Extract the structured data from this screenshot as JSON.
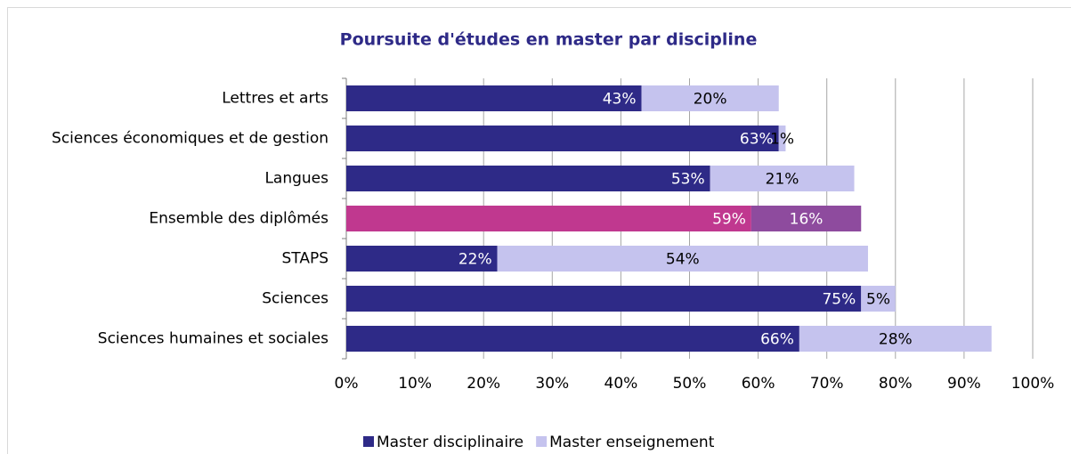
{
  "chart_data": {
    "type": "stacked_bar_horizontal",
    "title": "Poursuite d'études en master par discipline",
    "categories": [
      "Lettres et arts",
      "Sciences économiques et de gestion",
      "Langues",
      "Ensemble des diplômés",
      "STAPS",
      "Sciences",
      "Sciences humaines et sociales"
    ],
    "series": [
      {
        "name": "Master disciplinaire",
        "color": "#2e2a87",
        "colors": [
          "#2e2a87",
          "#2e2a87",
          "#2e2a87",
          "#c0388f",
          "#2e2a87",
          "#2e2a87",
          "#2e2a87"
        ],
        "values": [
          43,
          63,
          53,
          59,
          22,
          75,
          66
        ],
        "value_labels": [
          "43%",
          "63%",
          "53%",
          "59%",
          "22%",
          "75%",
          "66%"
        ]
      },
      {
        "name": "Master enseignement",
        "color": "#c5c3ee",
        "colors": [
          "#c5c3ee",
          "#c5c3ee",
          "#c5c3ee",
          "#8e4b9e",
          "#c5c3ee",
          "#c5c3ee",
          "#c5c3ee"
        ],
        "values": [
          20,
          1,
          21,
          16,
          54,
          5,
          28
        ],
        "value_labels": [
          "20%",
          "1%",
          "21%",
          "16%",
          "54%",
          "5%",
          "28%"
        ]
      }
    ],
    "xlim": [
      0,
      100
    ],
    "xticks": [
      {
        "value": 0,
        "label": "0%"
      },
      {
        "value": 10,
        "label": "10%"
      },
      {
        "value": 20,
        "label": "20%"
      },
      {
        "value": 30,
        "label": "30%"
      },
      {
        "value": 40,
        "label": "40%"
      },
      {
        "value": 50,
        "label": "50%"
      },
      {
        "value": 60,
        "label": "60%"
      },
      {
        "value": 70,
        "label": "70%"
      },
      {
        "value": 80,
        "label": "80%"
      },
      {
        "value": 90,
        "label": "90%"
      },
      {
        "value": 100,
        "label": "100%"
      }
    ],
    "grid": true,
    "legend": "bottom"
  }
}
